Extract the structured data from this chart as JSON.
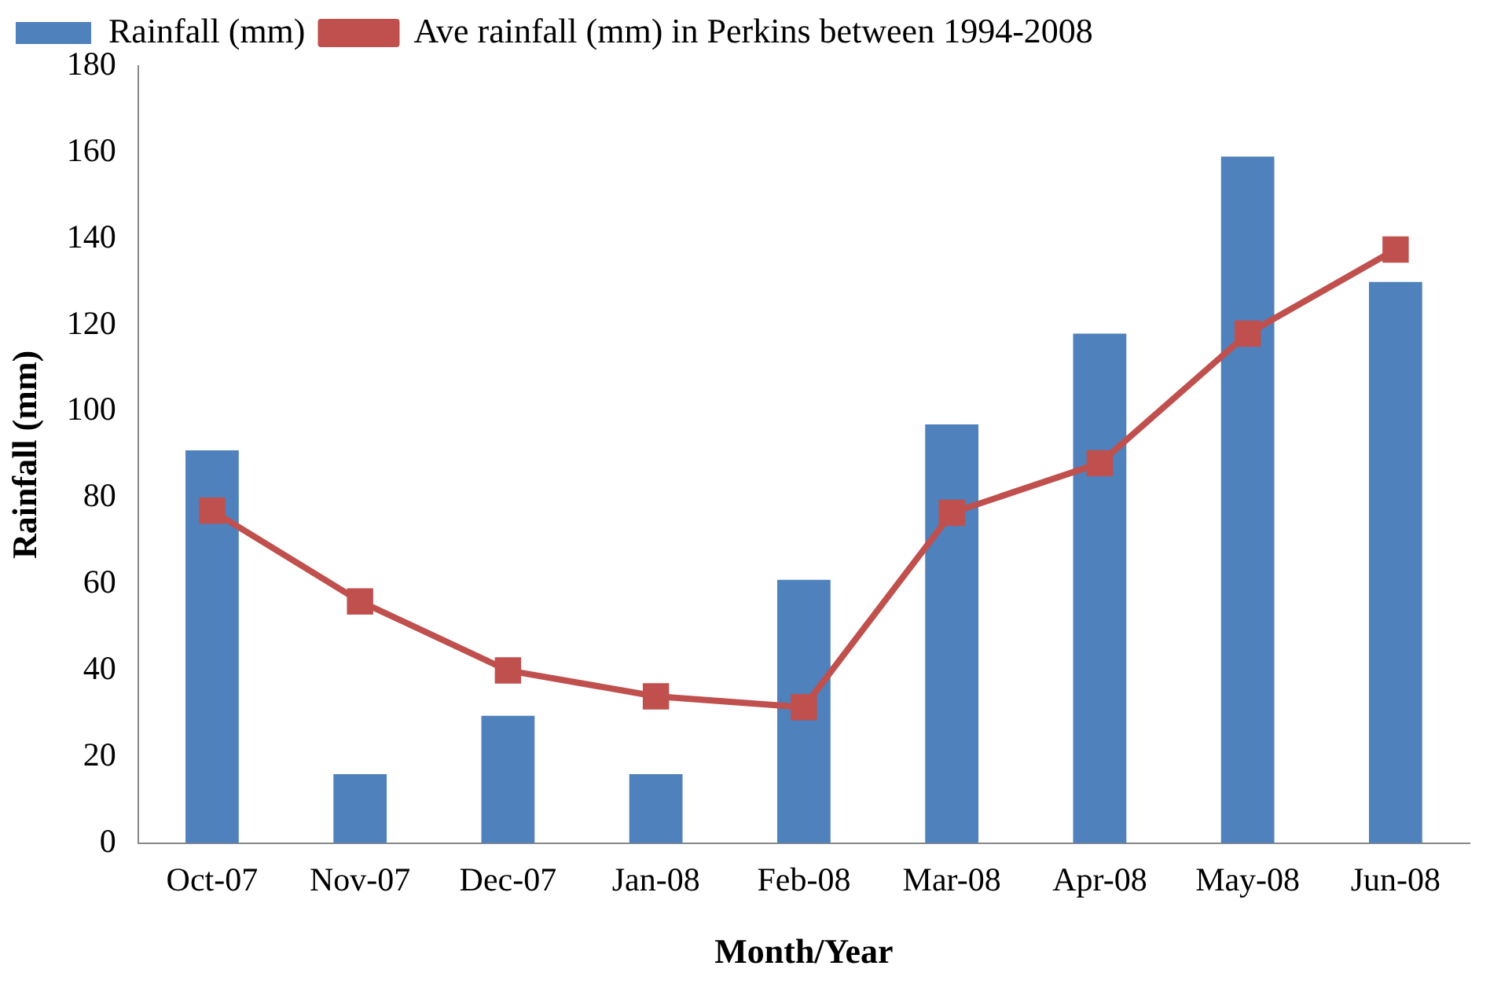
{
  "chart_data": {
    "type": "bar",
    "xlabel": "Month/Year",
    "ylabel": "Rainfall (mm)",
    "categories": [
      "Oct-07",
      "Nov-07",
      "Dec-07",
      "Jan-08",
      "Feb-08",
      "Mar-08",
      "Apr-08",
      "May-08",
      "Jun-08"
    ],
    "series": [
      {
        "name": "Rainfall (mm)",
        "color": "#4f81bd",
        "values": [
          91,
          16,
          29.5,
          16,
          61,
          97,
          118,
          159,
          130
        ]
      },
      {
        "name": "Ave rainfall (mm) in Perkins between 1994-2008",
        "type": "line",
        "color": "#c0504d",
        "values": [
          77,
          56,
          40,
          34,
          31.5,
          76.5,
          88,
          118,
          137.5
        ]
      }
    ],
    "ylim": [
      0,
      180
    ],
    "yticks": [
      0,
      20,
      40,
      60,
      80,
      100,
      120,
      140,
      160,
      180
    ],
    "grid": false,
    "legend": "top left",
    "marker": "square",
    "line_style": "solid"
  }
}
